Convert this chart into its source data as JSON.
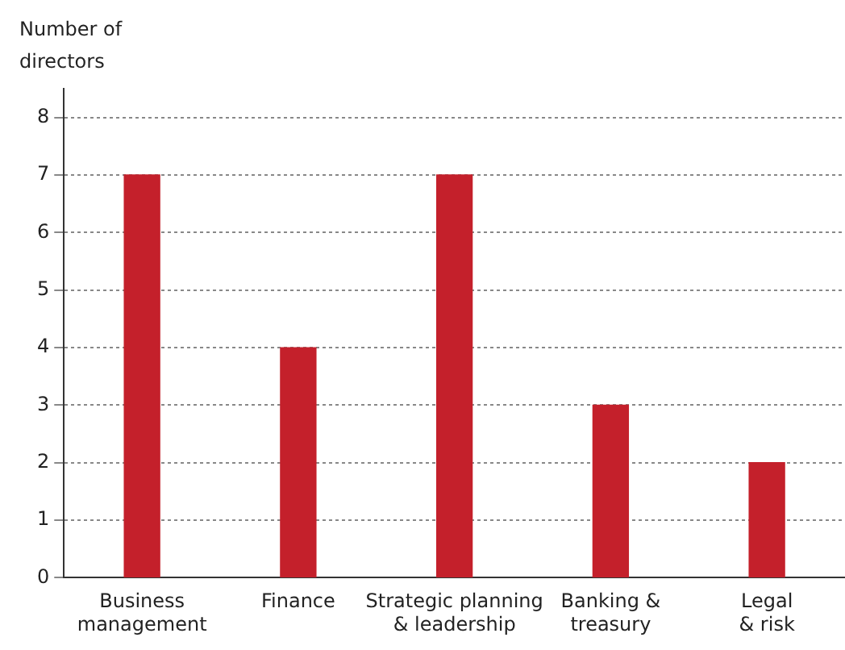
{
  "chart_data": {
    "type": "bar",
    "ylabel": "Number of\ndirectors",
    "categories": [
      "Business\nmanagement",
      "Finance",
      "Strategic planning\n& leadership",
      "Banking &\ntreasury",
      "Legal\n& risk"
    ],
    "values": [
      7,
      4,
      7,
      3,
      2
    ],
    "color": "#c4202b",
    "ylim": [
      0,
      8.5
    ],
    "yticks": [
      0,
      1,
      2,
      3,
      4,
      5,
      6,
      7,
      8
    ],
    "grid": "y"
  }
}
